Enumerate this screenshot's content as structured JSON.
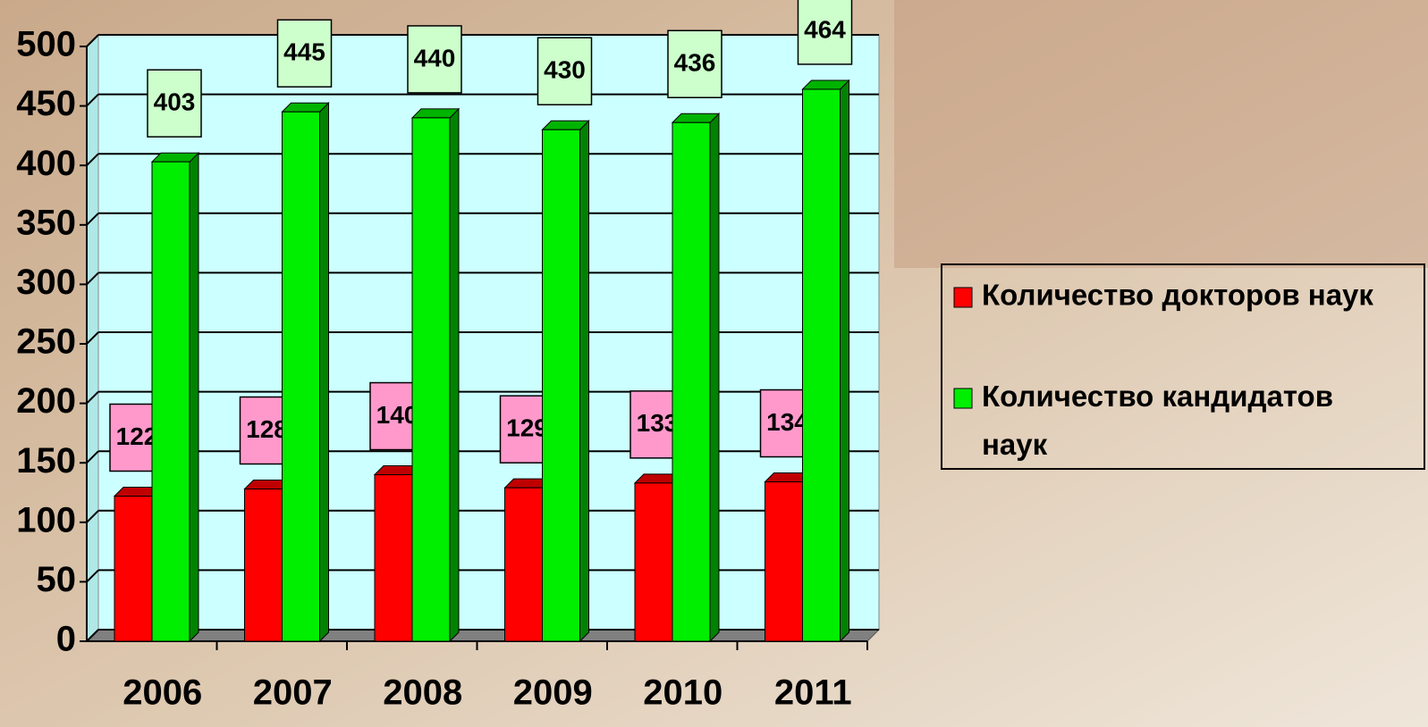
{
  "chart_data": {
    "type": "bar3d",
    "categories": [
      "2006",
      "2007",
      "2008",
      "2009",
      "2010",
      "2011"
    ],
    "series": [
      {
        "name": "Количество докторов наук",
        "color": "#ff0000",
        "values": [
          122,
          128,
          140,
          129,
          133,
          134
        ]
      },
      {
        "name": "Количество кандидатов наук",
        "color": "#00ee00",
        "values": [
          403,
          445,
          440,
          430,
          436,
          464
        ]
      }
    ],
    "ylim": [
      0,
      500
    ],
    "yticks": [
      0,
      50,
      100,
      150,
      200,
      250,
      300,
      350,
      400,
      450,
      500
    ],
    "grid": true,
    "legend": "right"
  }
}
